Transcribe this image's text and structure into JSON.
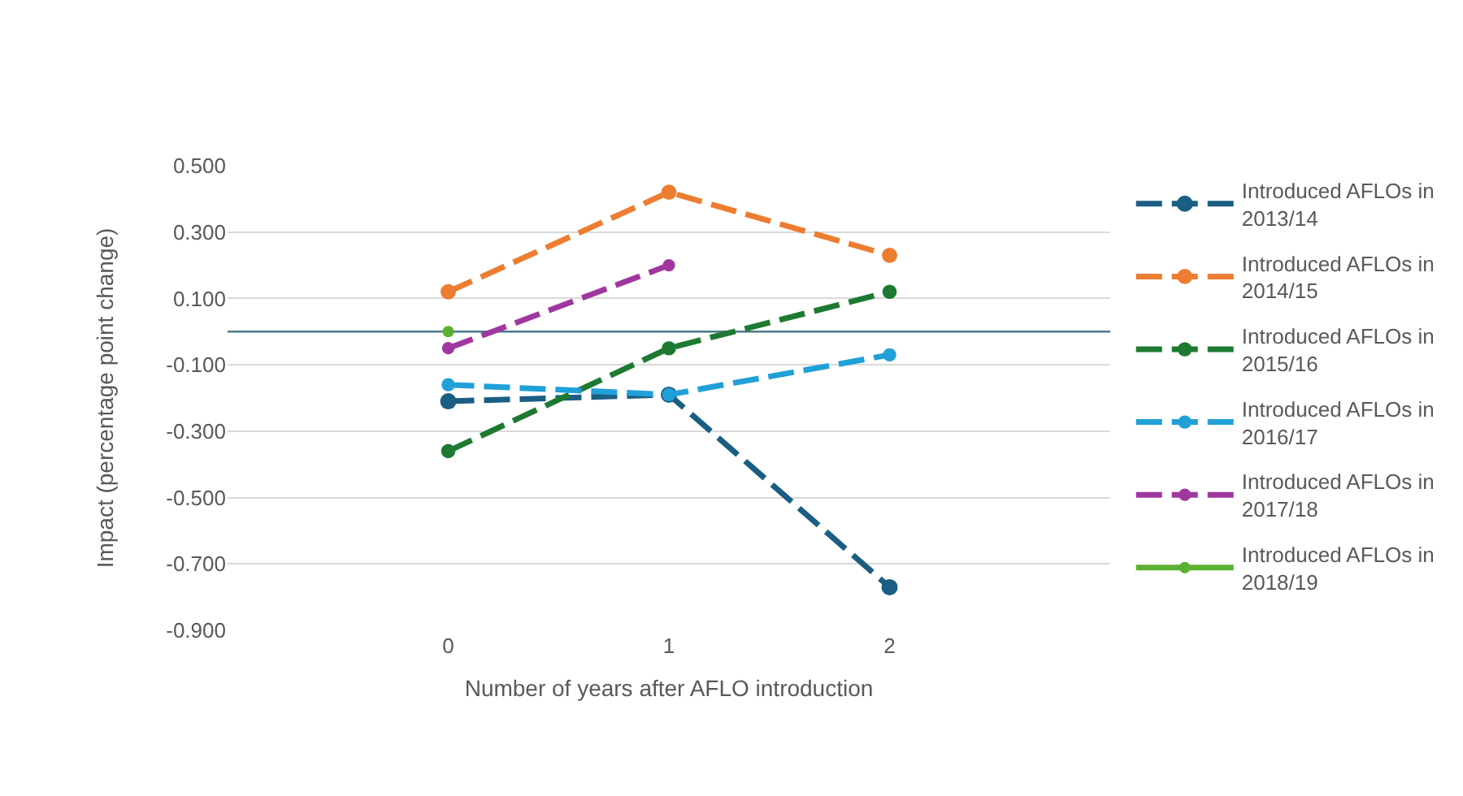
{
  "chart_data": {
    "type": "line",
    "xlabel": "Number of years after AFLO introduction",
    "ylabel": "Impact (percentage point change)",
    "x": [
      0,
      1,
      2
    ],
    "xlim": [
      -1,
      3
    ],
    "xticks": [
      0,
      1,
      2
    ],
    "ylim": [
      -0.9,
      0.5
    ],
    "yticks": [
      {
        "value": 0.5,
        "label": "0.500"
      },
      {
        "value": 0.3,
        "label": "0.300"
      },
      {
        "value": 0.1,
        "label": "0.100"
      },
      {
        "value": -0.1,
        "label": "-0.100"
      },
      {
        "value": -0.3,
        "label": "-0.300"
      },
      {
        "value": -0.5,
        "label": "-0.500"
      },
      {
        "value": -0.7,
        "label": "-0.700"
      },
      {
        "value": -0.9,
        "label": "-0.900"
      }
    ],
    "grid": "y",
    "legend": "right",
    "marker": "circle",
    "ref_lines": [
      {
        "axis": "y",
        "value": 0,
        "color": "#4a7a8c"
      }
    ],
    "series": [
      {
        "name": "Introduced AFLOs in 2013/14",
        "color": "#1b5e84",
        "line_style": "dashed",
        "values": [
          -0.21,
          -0.19,
          -0.77
        ]
      },
      {
        "name": "Introduced AFLOs in 2014/15",
        "color": "#ed7d31",
        "line_style": "dashed",
        "values": [
          0.12,
          0.42,
          0.23
        ]
      },
      {
        "name": "Introduced AFLOs in 2015/16",
        "color": "#1e7a32",
        "line_style": "dashed",
        "values": [
          -0.36,
          -0.05,
          0.12
        ]
      },
      {
        "name": "Introduced AFLOs in 2016/17",
        "color": "#21a0d8",
        "line_style": "dashed",
        "values": [
          -0.16,
          -0.19,
          -0.07
        ]
      },
      {
        "name": "Introduced AFLOs in 2017/18",
        "color": "#a0379f",
        "line_style": "dashed",
        "values": [
          -0.05,
          0.2,
          null
        ]
      },
      {
        "name": "Introduced AFLOs in 2018/19",
        "color": "#5bb031",
        "line_style": "solid",
        "values": [
          0,
          null,
          null
        ]
      }
    ]
  }
}
